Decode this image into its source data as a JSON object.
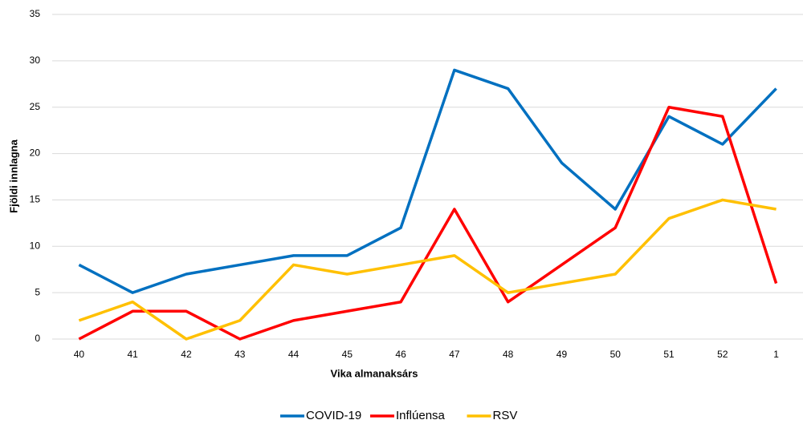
{
  "chart_data": {
    "type": "line",
    "xlabel": "Vika almanaksárs",
    "ylabel": "Fjöldi innlagna",
    "categories": [
      "40",
      "41",
      "42",
      "43",
      "44",
      "45",
      "46",
      "47",
      "48",
      "49",
      "50",
      "51",
      "52",
      "1"
    ],
    "series": [
      {
        "name": "COVID-19",
        "color": "#0070c0",
        "values": [
          8,
          5,
          7,
          8,
          9,
          9,
          12,
          29,
          27,
          19,
          14,
          24,
          21,
          27
        ]
      },
      {
        "name": "Inflúensa",
        "color": "#ff0000",
        "values": [
          0,
          3,
          3,
          0,
          2,
          3,
          4,
          14,
          4,
          8,
          12,
          25,
          24,
          6
        ]
      },
      {
        "name": "RSV",
        "color": "#ffc000",
        "values": [
          2,
          4,
          0,
          2,
          8,
          7,
          8,
          9,
          5,
          6,
          7,
          13,
          15,
          14
        ]
      }
    ],
    "ylim": [
      0,
      35
    ],
    "yticks": [
      0,
      5,
      10,
      15,
      20,
      25,
      30,
      35
    ],
    "grid": true,
    "legend": "bottom"
  }
}
